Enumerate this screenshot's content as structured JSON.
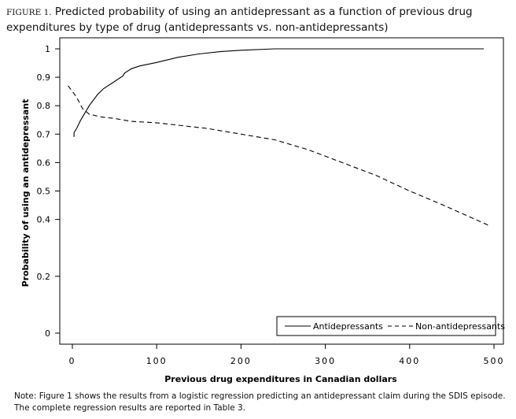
{
  "figure_label": "FIGURE 1.",
  "title": "Predicted probability of using an antidepressant as a function of previous drug expenditures by type of drug (antidepressants vs. non-antidepressants)",
  "note": "Note: Figure 1 shows the results from a logistic regression predicting an antidepressant claim during the SDIS episode. The complete regression results are reported in Table 3.",
  "chart_data": {
    "type": "line",
    "title": "",
    "xlabel": "Previous drug expenditures in Canadian dollars",
    "ylabel": "Probability of using an antidepressant",
    "xlim": [
      -15,
      510
    ],
    "ylim": [
      -0.04,
      1.03
    ],
    "xticks": [
      0,
      100,
      200,
      300,
      400,
      500
    ],
    "xtick_labels": [
      "0",
      "100",
      "200",
      "300",
      "400",
      "500"
    ],
    "yticks": [
      0,
      0.2,
      0.4,
      0.5,
      0.6,
      0.7,
      0.8,
      0.9,
      1
    ],
    "ytick_labels": [
      "0",
      "0.2",
      "0.4",
      "0.5",
      "0.6",
      "0.7",
      "0.8",
      "0.9",
      "1"
    ],
    "grid": false,
    "legend_position": "bottom-right",
    "series": [
      {
        "name": "Antidepressants",
        "style": "solid",
        "x": [
          2,
          2,
          5,
          10,
          20,
          30,
          37,
          50,
          60,
          62,
          70,
          80,
          100,
          125,
          150,
          175,
          200,
          240,
          300,
          400,
          488
        ],
        "y": [
          0.69,
          0.705,
          0.72,
          0.75,
          0.8,
          0.84,
          0.86,
          0.885,
          0.905,
          0.915,
          0.93,
          0.94,
          0.952,
          0.97,
          0.982,
          0.99,
          0.995,
          1.0,
          1.0,
          1.0,
          1.0
        ]
      },
      {
        "name": "Non-antidepressants",
        "style": "dashed",
        "x": [
          -5,
          5,
          12,
          20,
          35,
          50,
          70,
          100,
          130,
          160,
          200,
          240,
          280,
          320,
          360,
          400,
          440,
          493
        ],
        "y": [
          0.87,
          0.83,
          0.79,
          0.77,
          0.76,
          0.755,
          0.745,
          0.74,
          0.73,
          0.72,
          0.7,
          0.68,
          0.645,
          0.6,
          0.555,
          0.5,
          0.45,
          0.38
        ]
      }
    ]
  }
}
